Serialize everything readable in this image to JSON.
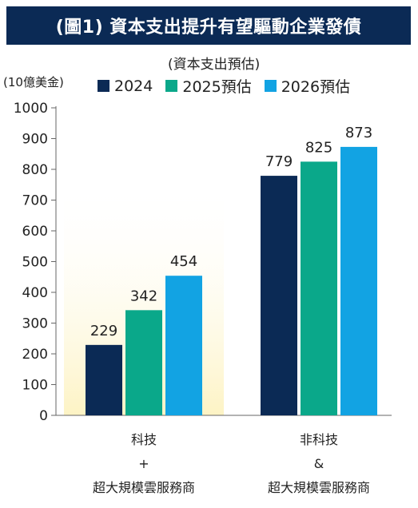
{
  "title": "(圖1) 資本支出提升有望驅動企業發債",
  "subtitle": "(資本支出預估)",
  "unit": "(10億美金)",
  "colors": {
    "title_bg": "#0b2a55",
    "series_2024": "#0b2a55",
    "series_2025": "#0aa88a",
    "series_2026": "#12a3e3",
    "highlight": "#fdf3c4"
  },
  "chart_data": {
    "type": "bar",
    "categories": [
      "科技+超大規模雲服務商",
      "非科技&超大規模雲服務商"
    ],
    "category_labels": [
      {
        "line1": "科技",
        "line2": "+",
        "line3": "超大規模雲服務商"
      },
      {
        "line1": "非科技",
        "line2": "&",
        "line3": "超大規模雲服務商"
      }
    ],
    "series": [
      {
        "name": "2024",
        "values": [
          229,
          779
        ]
      },
      {
        "name": "2025預估",
        "values": [
          342,
          825
        ]
      },
      {
        "name": "2026預估",
        "values": [
          454,
          873
        ]
      }
    ],
    "ylim": [
      0,
      1000
    ],
    "yticks": [
      "0",
      "100",
      "200",
      "300",
      "400",
      "500",
      "600",
      "700",
      "800",
      "900",
      "1000"
    ],
    "legend_position": "top",
    "grid": false
  }
}
